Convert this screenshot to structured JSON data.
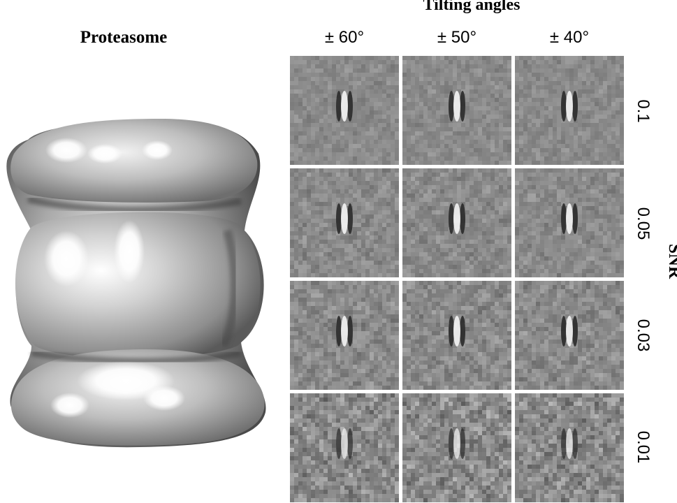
{
  "model": {
    "title": "Proteasome"
  },
  "grid": {
    "title": "Tilting angles",
    "columns": [
      "± 60°",
      "± 50°",
      "± 40°"
    ],
    "rows": [
      "0.1",
      "0.05",
      "0.03",
      "0.01"
    ],
    "row_axis_label": "SNR"
  }
}
